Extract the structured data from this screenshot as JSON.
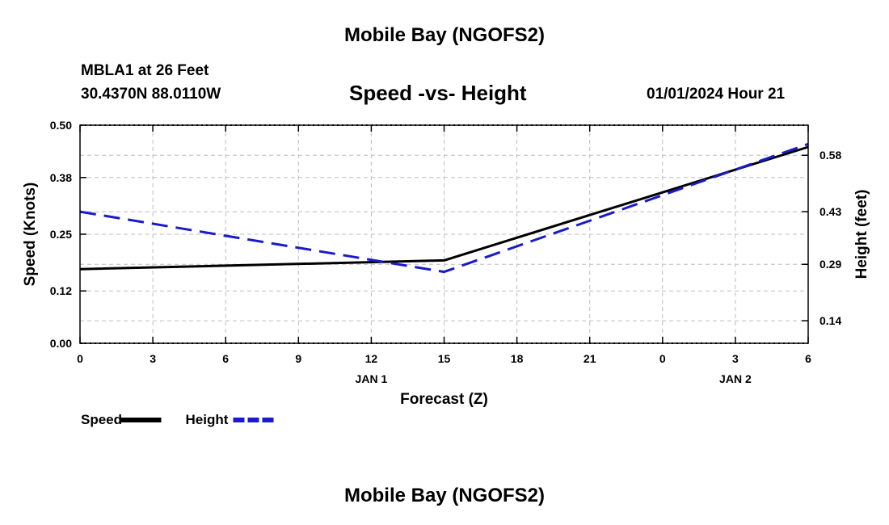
{
  "header": {
    "title_top": "Mobile Bay (NGOFS2)",
    "station": "MBLA1 at 26 Feet",
    "coords": "30.4370N  88.0110W",
    "subtitle": "Speed -vs- Height",
    "datetime": "01/01/2024 Hour 21",
    "title_bottom": "Mobile Bay (NGOFS2)"
  },
  "chart_data": {
    "type": "line",
    "title": "Speed -vs- Height",
    "xlabel": "Forecast (Z)",
    "ylabel": "Speed (Knots)",
    "ylabel_right": "Height (feet)",
    "x": [
      0,
      3,
      6,
      9,
      12,
      15,
      18,
      21,
      24,
      27,
      30
    ],
    "x_tick_labels": [
      "0",
      "3",
      "6",
      "9",
      "12",
      "15",
      "18",
      "21",
      "0",
      "3",
      "6"
    ],
    "date_labels": [
      {
        "x": 12,
        "label": "JAN 1"
      },
      {
        "x": 27,
        "label": "JAN 2"
      }
    ],
    "xlim": [
      0,
      30
    ],
    "ylim": [
      0,
      0.5
    ],
    "y_ticks": [
      0.0,
      0.12,
      0.25,
      0.38,
      0.5
    ],
    "y_tick_labels": [
      "0.00",
      "0.12",
      "0.25",
      "0.38",
      "0.50"
    ],
    "ylim_right": [
      0.08,
      0.66
    ],
    "y_ticks_right": [
      0.14,
      0.29,
      0.43,
      0.58
    ],
    "y_tick_labels_right": [
      "0.14",
      "0.29",
      "0.43",
      "0.58"
    ],
    "grid": true,
    "legend_position": "bottom-left",
    "series": [
      {
        "name": "Speed",
        "axis": "left",
        "color": "#000000",
        "style": "solid",
        "x": [
          0,
          15,
          30
        ],
        "values": [
          0.17,
          0.19,
          0.45
        ]
      },
      {
        "name": "Height",
        "axis": "right",
        "color": "#1a1acc",
        "style": "dashed",
        "x": [
          0,
          15,
          30
        ],
        "values": [
          0.43,
          0.27,
          0.61
        ]
      }
    ]
  }
}
